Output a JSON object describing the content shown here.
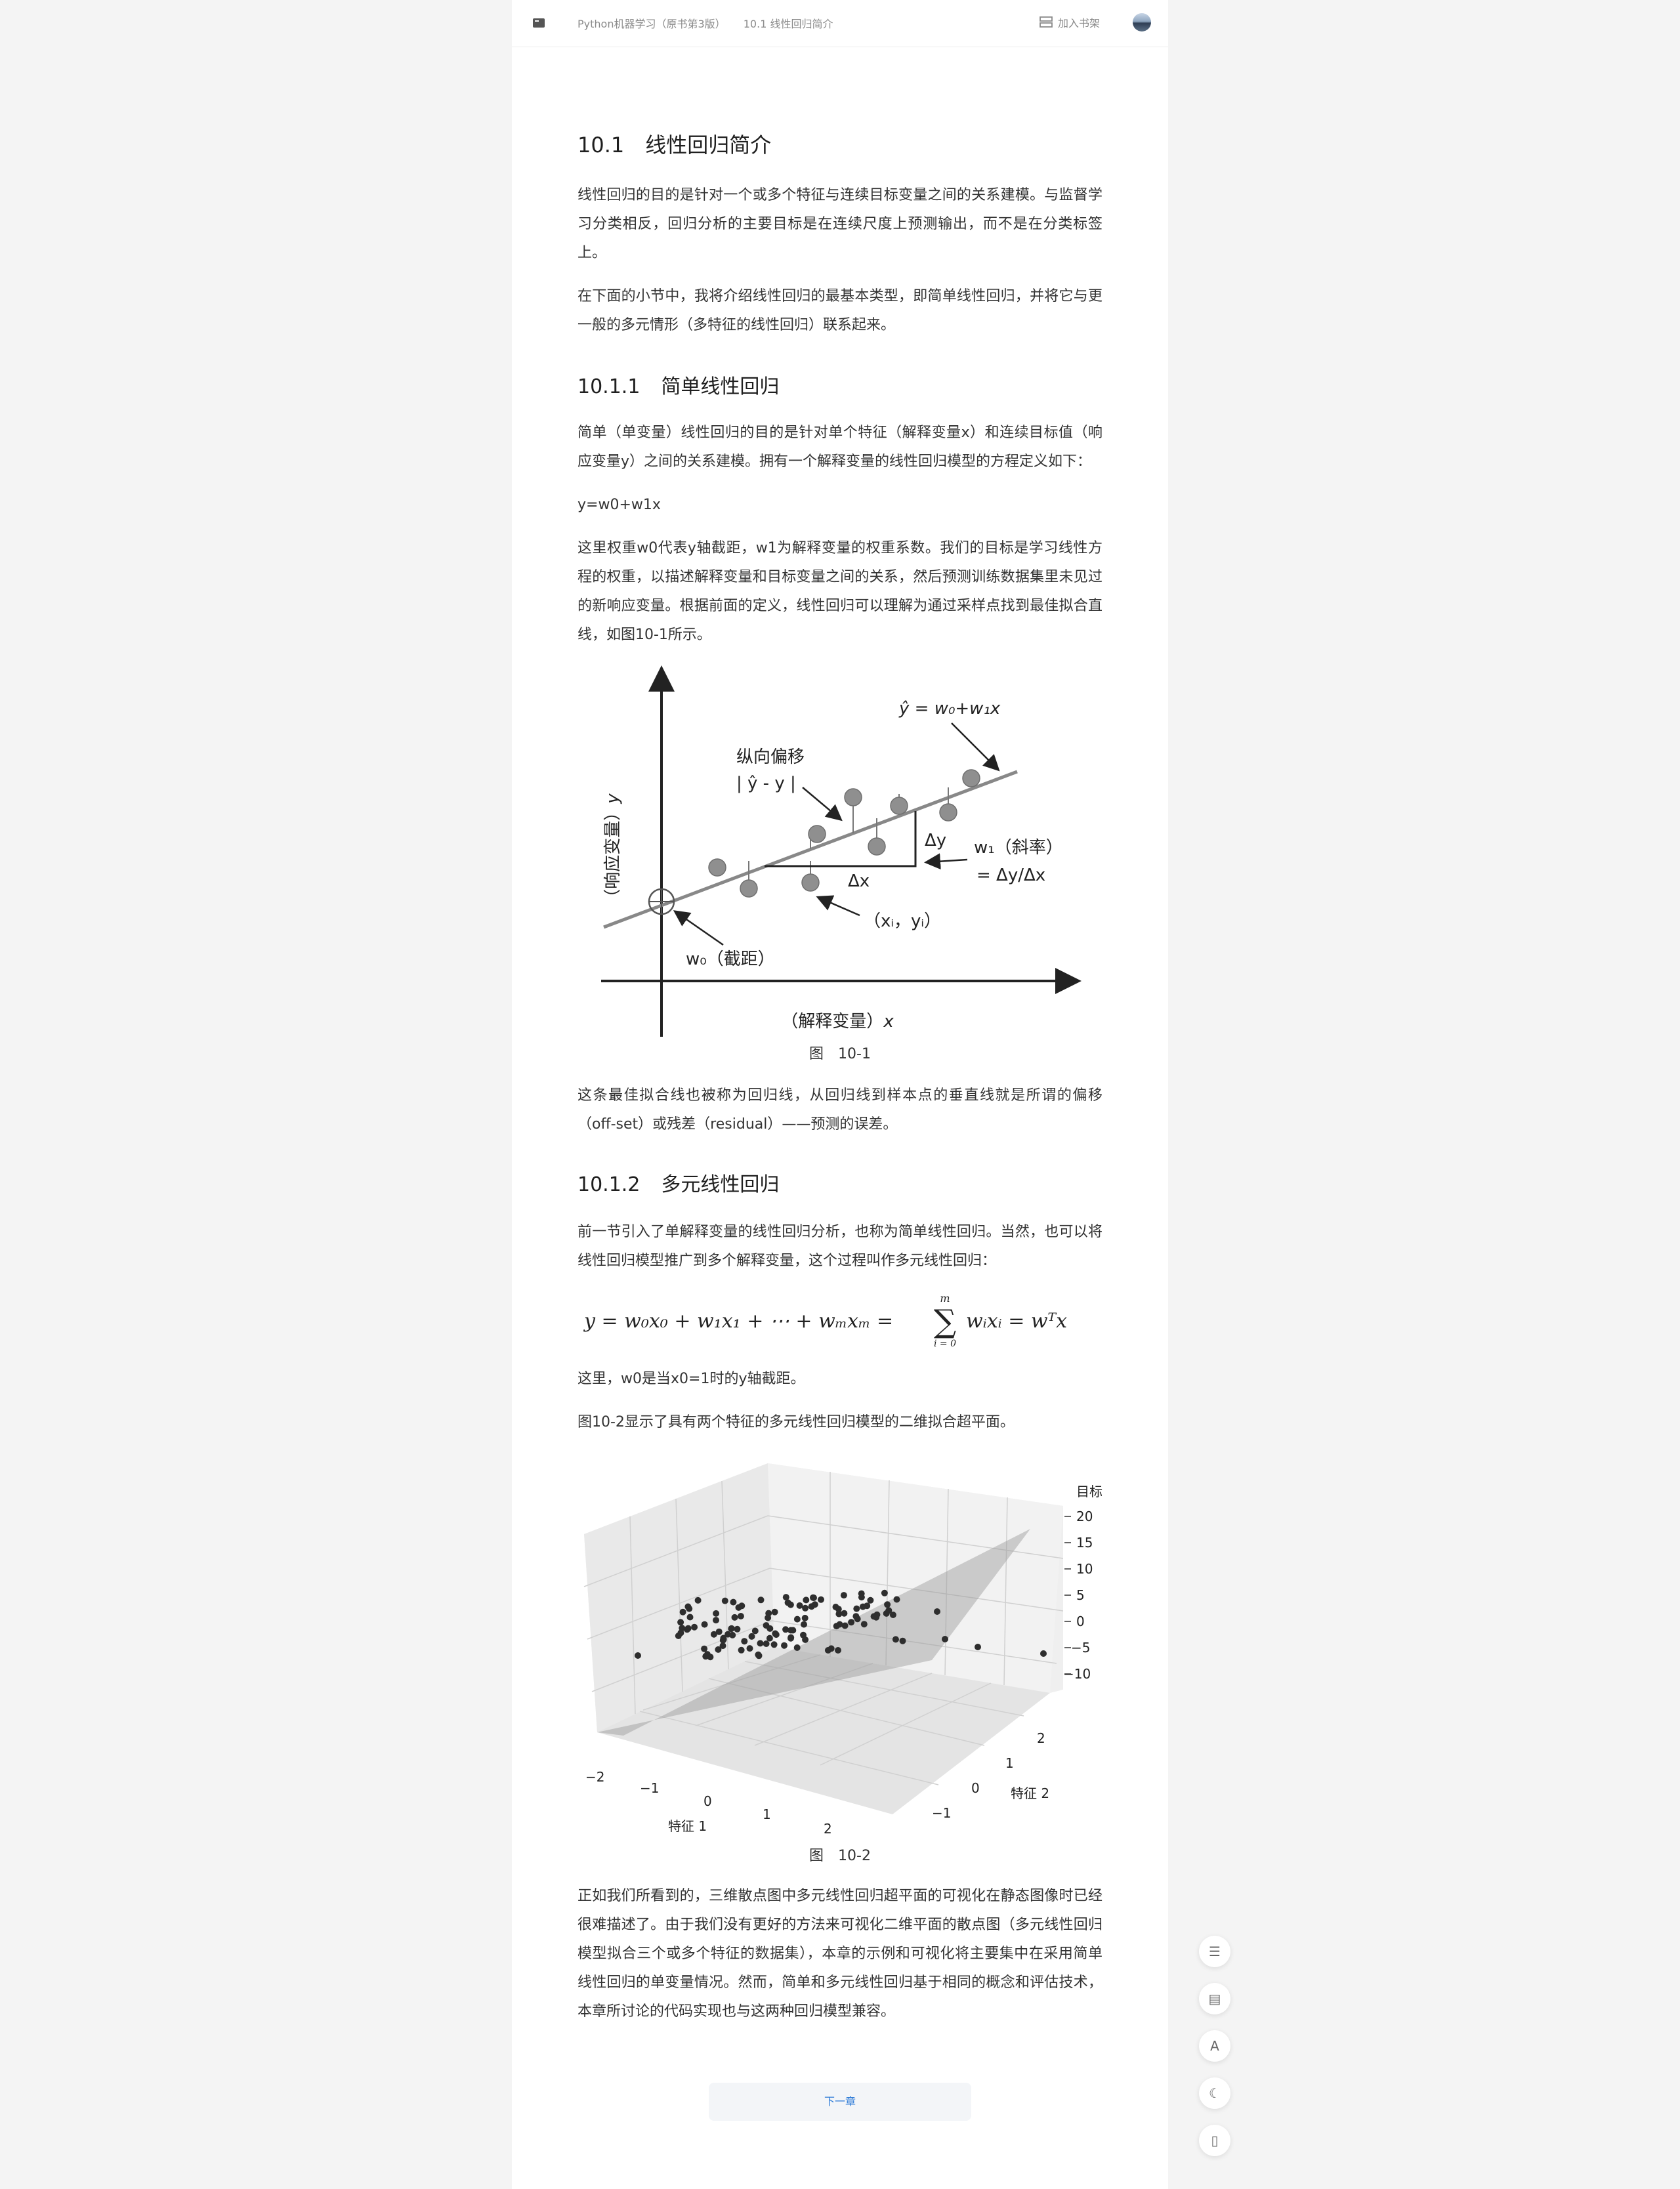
{
  "header": {
    "book_title": "Python机器学习（原书第3版）",
    "chapter_crumb": "10.1 线性回归简介",
    "add_shelf_label": "加入书架"
  },
  "section": {
    "number": "10.1",
    "title": "线性回归简介",
    "intro_p1": "线性回归的目的是针对一个或多个特征与连续目标变量之间的关系建模。与监督学习分类相反，回归分析的主要目标是在连续尺度上预测输出，而不是在分类标签上。",
    "intro_p2": "在下面的小节中，我将介绍线性回归的最基本类型，即简单线性回归，并将它与更一般的多元情形（多特征的线性回归）联系起来。"
  },
  "subsection1": {
    "number": "10.1.1",
    "title": "简单线性回归",
    "p1": "简单（单变量）线性回归的目的是针对单个特征（解释变量x）和连续目标值（响应变量y）之间的关系建模。拥有一个解释变量的线性回归模型的方程定义如下：",
    "equation": "y=w0+w1x",
    "p2": "这里权重w0代表y轴截距，w1为解释变量的权重系数。我们的目标是学习线性方程的权重，以描述解释变量和目标变量之间的关系，然后预测训练数据集里未见过的新响应变量。根据前面的定义，线性回归可以理解为通过采样点找到最佳拟合直线，如图10-1所示。",
    "p3": "这条最佳拟合线也被称为回归线，从回归线到样本点的垂直线就是所谓的偏移（off-set）或残差（residual）——预测的误差。"
  },
  "figure1": {
    "caption": "图　10-1",
    "y_axis_label": "（响应变量）",
    "y_axis_var": "y",
    "x_axis_label": "（解释变量）",
    "x_axis_var": "x",
    "offset_label": "纵向偏移",
    "offset_formula": "| ŷ - y |",
    "regression_formula": "ŷ = w₀+w₁x",
    "slope_label": "w₁（斜率）",
    "slope_formula": "= Δy/Δx",
    "delta_x": "Δx",
    "delta_y": "Δy",
    "point_label": "（xᵢ，yᵢ）",
    "intercept_label": "w₀（截距）"
  },
  "subsection2": {
    "number": "10.1.2",
    "title": "多元线性回归",
    "p1": "前一节引入了单解释变量的线性回归分析，也称为简单线性回归。当然，也可以将线性回归模型推广到多个解释变量，这个过程叫作多元线性回归：",
    "p2": "这里，w0是当x0=1时的y轴截距。",
    "p3": "图10-2显示了具有两个特征的多元线性回归模型的二维拟合超平面。",
    "p4": "正如我们所看到的，三维散点图中多元线性回归超平面的可视化在静态图像时已经很难描述了。由于我们没有更好的方法来可视化二维平面的散点图（多元线性回归模型拟合三个或多个特征的数据集），本章的示例和可视化将主要集中在采用简单线性回归的单变量情况。然而，简单和多元线性回归基于相同的概念和评估技术，本章所讨论的代码实现也与这两种回归模型兼容。"
  },
  "formula2": {
    "lhs": "y = w₀x₀ + w₁x₁ + ⋯ + wₘxₘ =",
    "sum_top": "m",
    "sum_bottom": "i = 0",
    "rhs": "wᵢxᵢ = wᵀx"
  },
  "figure2": {
    "caption": "图　10-2",
    "z_label": "目标",
    "z_ticks": [
      "20",
      "15",
      "10",
      "5",
      "0",
      "−5",
      "−10"
    ],
    "x_label": "特征 1",
    "x_ticks": [
      "−2",
      "−1",
      "0",
      "1",
      "2"
    ],
    "y_label": "特征 2",
    "y_ticks": [
      "−1",
      "0",
      "1",
      "2"
    ]
  },
  "footer": {
    "next_chapter_label": "下一章"
  },
  "side_tools": [
    {
      "name": "toc-icon",
      "glyph": "☰"
    },
    {
      "name": "comment-icon",
      "glyph": "▤"
    },
    {
      "name": "font-icon",
      "glyph": "A"
    },
    {
      "name": "night-mode-icon",
      "glyph": "☾"
    },
    {
      "name": "phone-icon",
      "glyph": "▯"
    }
  ]
}
